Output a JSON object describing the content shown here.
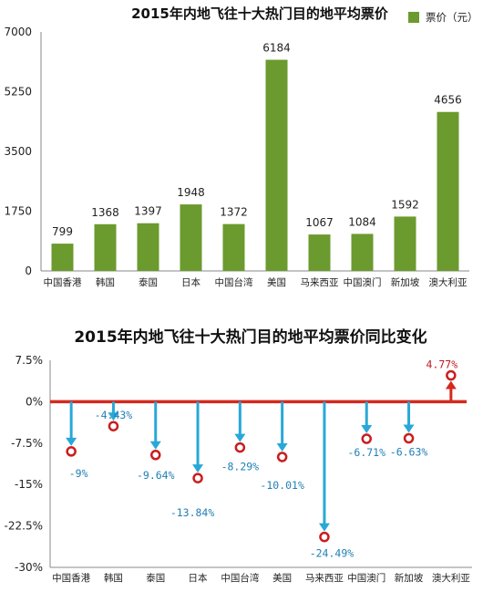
{
  "colors": {
    "bar": "#6b9a2e",
    "axis_line": "#d42a1e",
    "arrow_down": "#29a8d8",
    "marker_ring": "#c81e1e",
    "label_negative": "#1f7fb4",
    "label_positive": "#c0161c"
  },
  "chart_data": [
    {
      "type": "bar",
      "title": "2015年内地飞往十大热门目的地平均票价",
      "legend": {
        "label": "票价（元）",
        "placement": "top-right"
      },
      "categories": [
        "中国香港",
        "韩国",
        "泰国",
        "日本",
        "中国台湾",
        "美国",
        "马来西亚",
        "中国澳门",
        "新加坡",
        "澳大利亚"
      ],
      "series": [
        {
          "name": "票价（元）",
          "values": [
            799,
            1368,
            1397,
            1948,
            1372,
            6184,
            1067,
            1084,
            1592,
            4656
          ]
        }
      ],
      "value_labels": [
        "799",
        "1368",
        "1397",
        "1948",
        "1372",
        "6184",
        "1067",
        "1084",
        "1592",
        "4656"
      ],
      "y_ticks": [
        0,
        1750,
        3500,
        5250,
        7000
      ],
      "y_tick_labels": [
        "0",
        "1750",
        "3500",
        "5250",
        "7000"
      ],
      "ylim": [
        0,
        7000
      ],
      "grid": false
    },
    {
      "type": "line",
      "title": "2015年内地飞往十大热门目的地平均票价同比变化",
      "categories": [
        "中国香港",
        "韩国",
        "泰国",
        "日本",
        "中国台湾",
        "美国",
        "马来西亚",
        "中国澳门",
        "新加坡",
        "澳大利亚"
      ],
      "values": [
        -9,
        -4.43,
        -9.64,
        -13.84,
        -8.29,
        -10.01,
        -24.49,
        -6.71,
        -6.63,
        4.77
      ],
      "value_labels": [
        "-9%",
        "-4.43%",
        "-9.64%",
        "-13.84%",
        "-8.29%",
        "-10.01%",
        "-24.49%",
        "-6.71%",
        "-6.63%",
        "4.77%"
      ],
      "y_ticks": [
        7.5,
        0,
        -7.5,
        -15,
        -22.5,
        -30
      ],
      "y_tick_labels": [
        "7.5%",
        "0%",
        "-7.5%",
        "-15%",
        "-22.5%",
        "-30%"
      ],
      "ylim": [
        -30,
        7.5
      ],
      "grid": false
    }
  ]
}
